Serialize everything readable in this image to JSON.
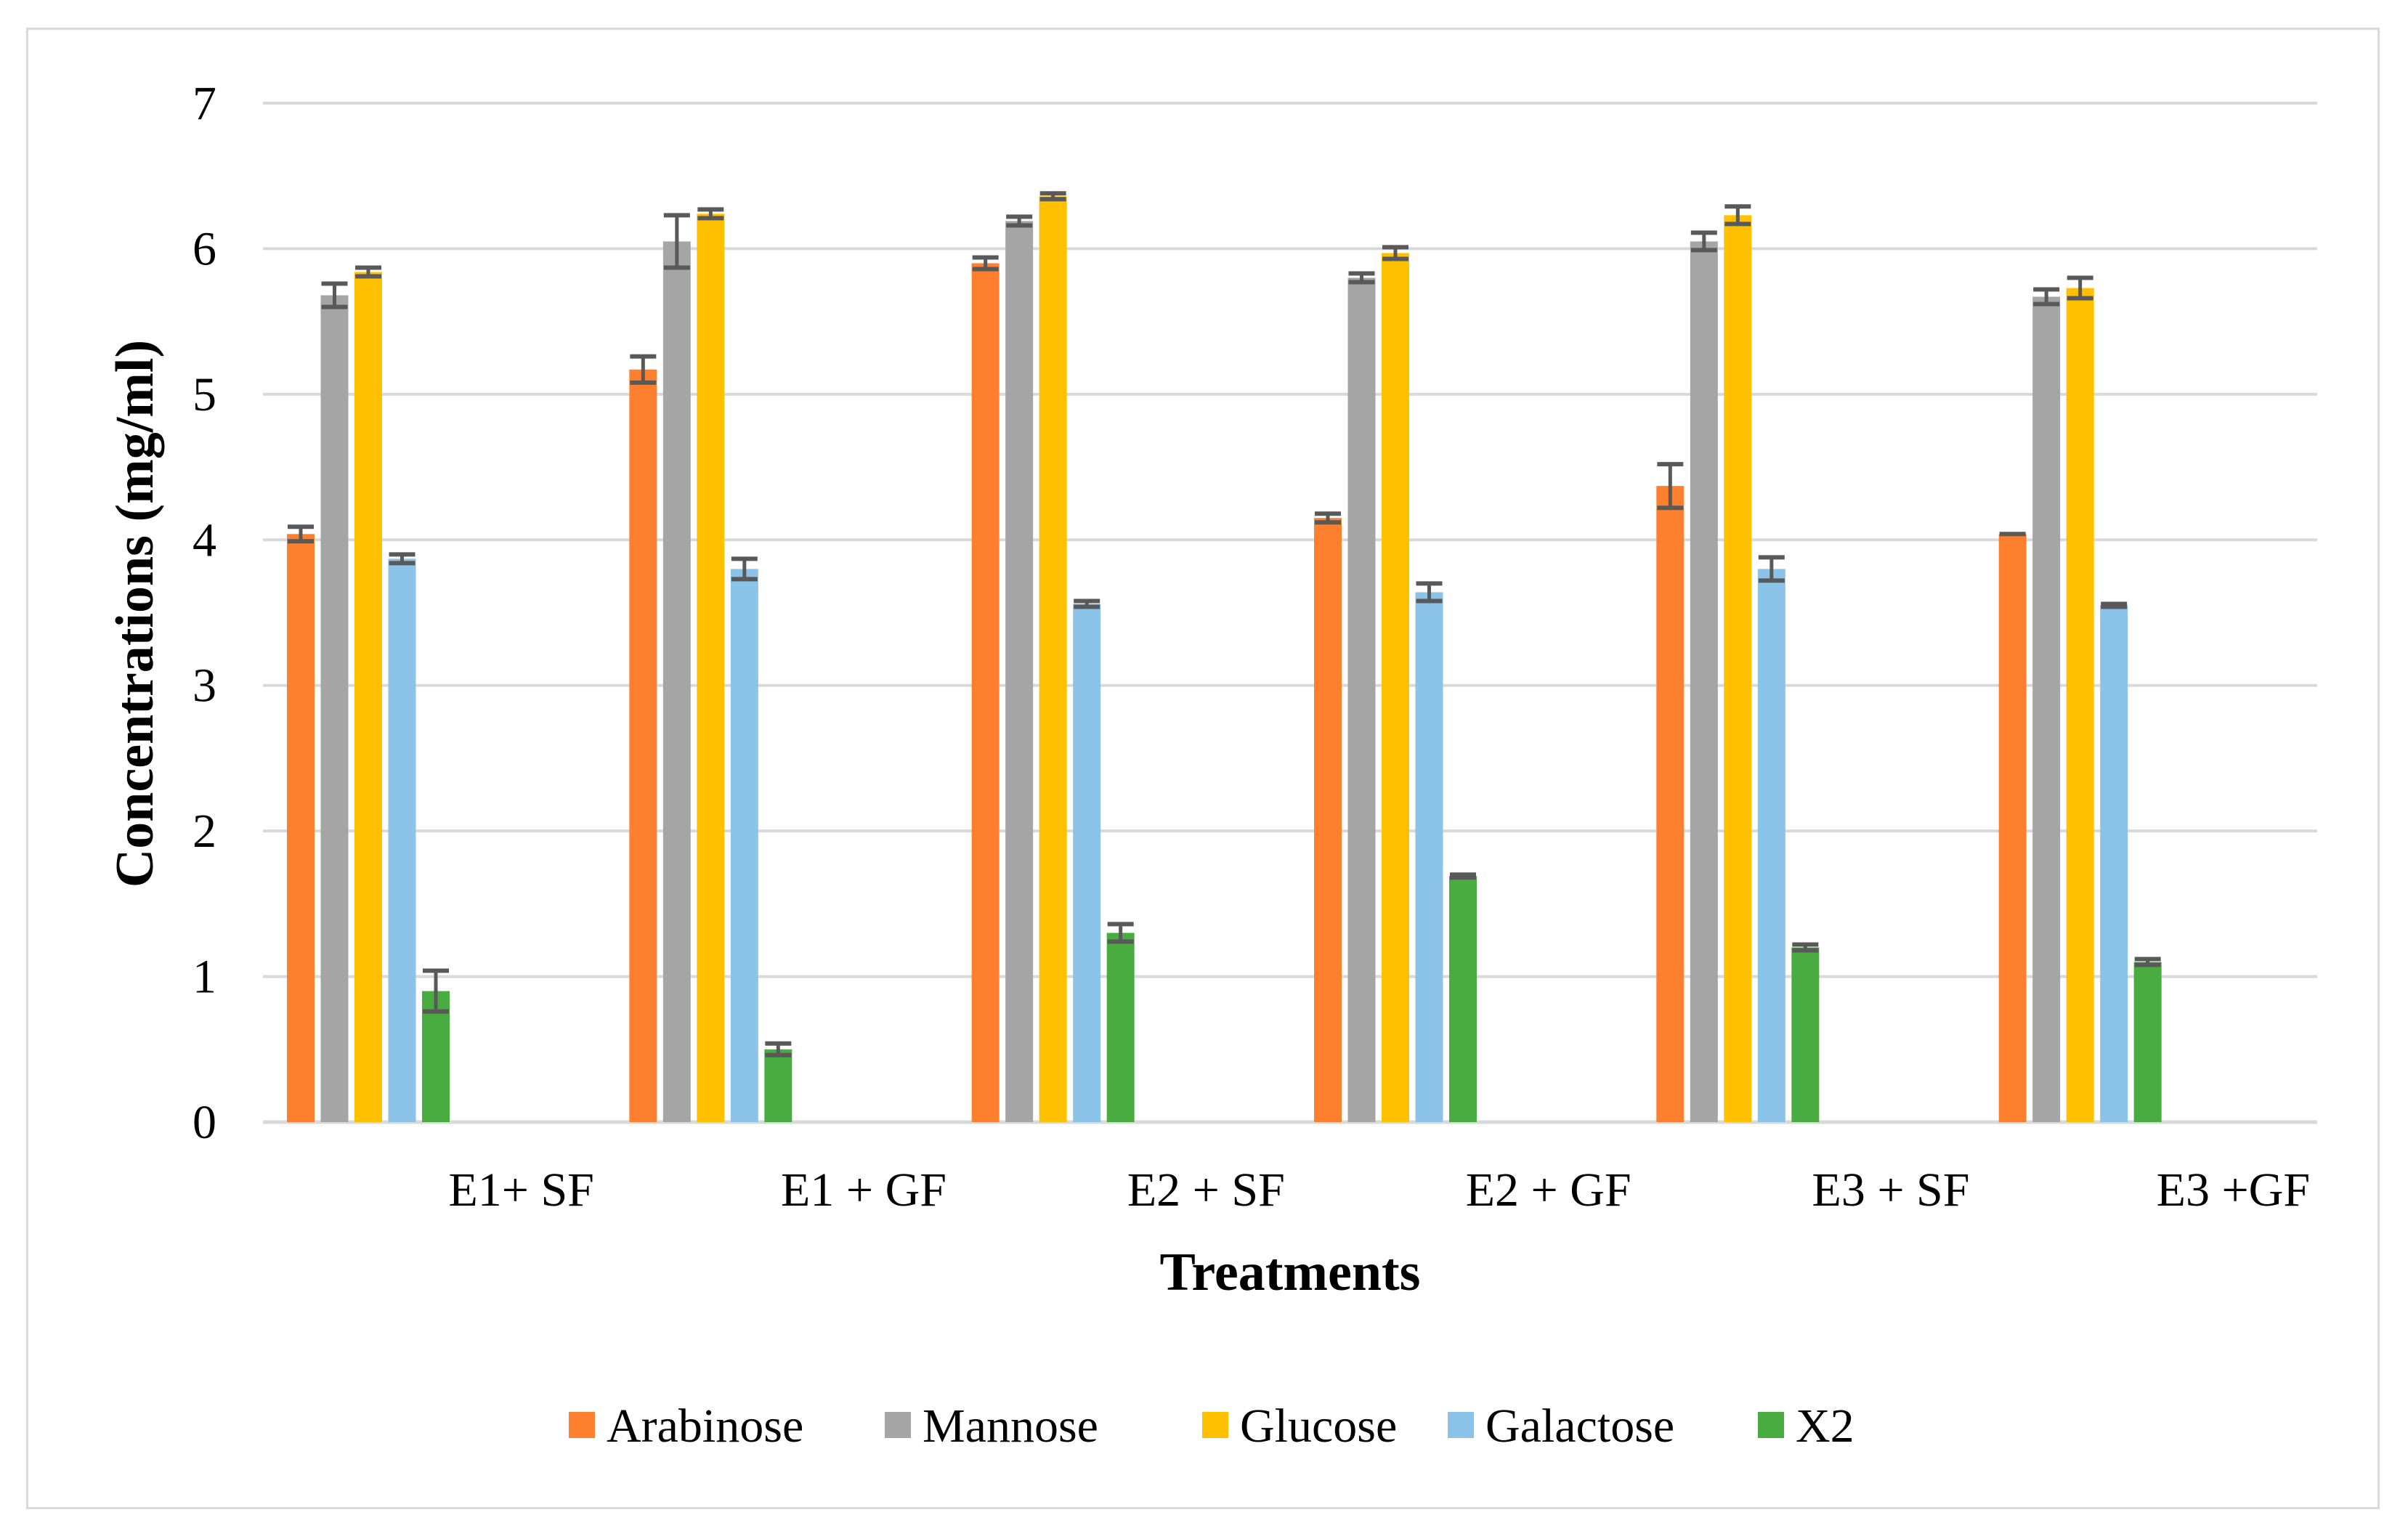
{
  "chart_data": {
    "type": "bar",
    "title": "",
    "xlabel": "Treatments",
    "ylabel": "Concentrations (mg/ml)",
    "ylim": [
      0,
      7
    ],
    "yticks": [
      "0",
      "1",
      "2",
      "3",
      "4",
      "5",
      "6",
      "7"
    ],
    "grid": true,
    "legend_position": "bottom",
    "categories": [
      "E1+ SF",
      "E1 + GF",
      "E2 + SF",
      "E2 + GF",
      "E3 + SF",
      "E3 +GF"
    ],
    "series": [
      {
        "name": "Arabinose",
        "color": "#fe7f2d",
        "values": [
          4.04,
          5.17,
          5.9,
          4.15,
          4.37,
          4.04
        ],
        "errors": [
          0.05,
          0.09,
          0.04,
          0.03,
          0.15,
          0.0
        ]
      },
      {
        "name": "Mannose",
        "color": "#a5a5a5",
        "values": [
          5.68,
          6.05,
          6.19,
          5.8,
          6.05,
          5.67
        ],
        "errors": [
          0.08,
          0.18,
          0.03,
          0.03,
          0.06,
          0.05
        ]
      },
      {
        "name": "Glucose",
        "color": "#ffc000",
        "values": [
          5.84,
          6.24,
          6.36,
          5.97,
          6.23,
          5.73
        ],
        "errors": [
          0.03,
          0.03,
          0.02,
          0.04,
          0.06,
          0.07
        ]
      },
      {
        "name": "Galactose",
        "color": "#8cc3e8",
        "values": [
          3.87,
          3.8,
          3.56,
          3.64,
          3.8,
          3.55
        ],
        "errors": [
          0.03,
          0.07,
          0.02,
          0.06,
          0.08,
          0.01
        ]
      },
      {
        "name": "X2",
        "color": "#48ac40",
        "values": [
          0.9,
          0.5,
          1.3,
          1.69,
          1.2,
          1.1
        ],
        "errors": [
          0.14,
          0.04,
          0.06,
          0.01,
          0.02,
          0.02
        ]
      }
    ]
  }
}
